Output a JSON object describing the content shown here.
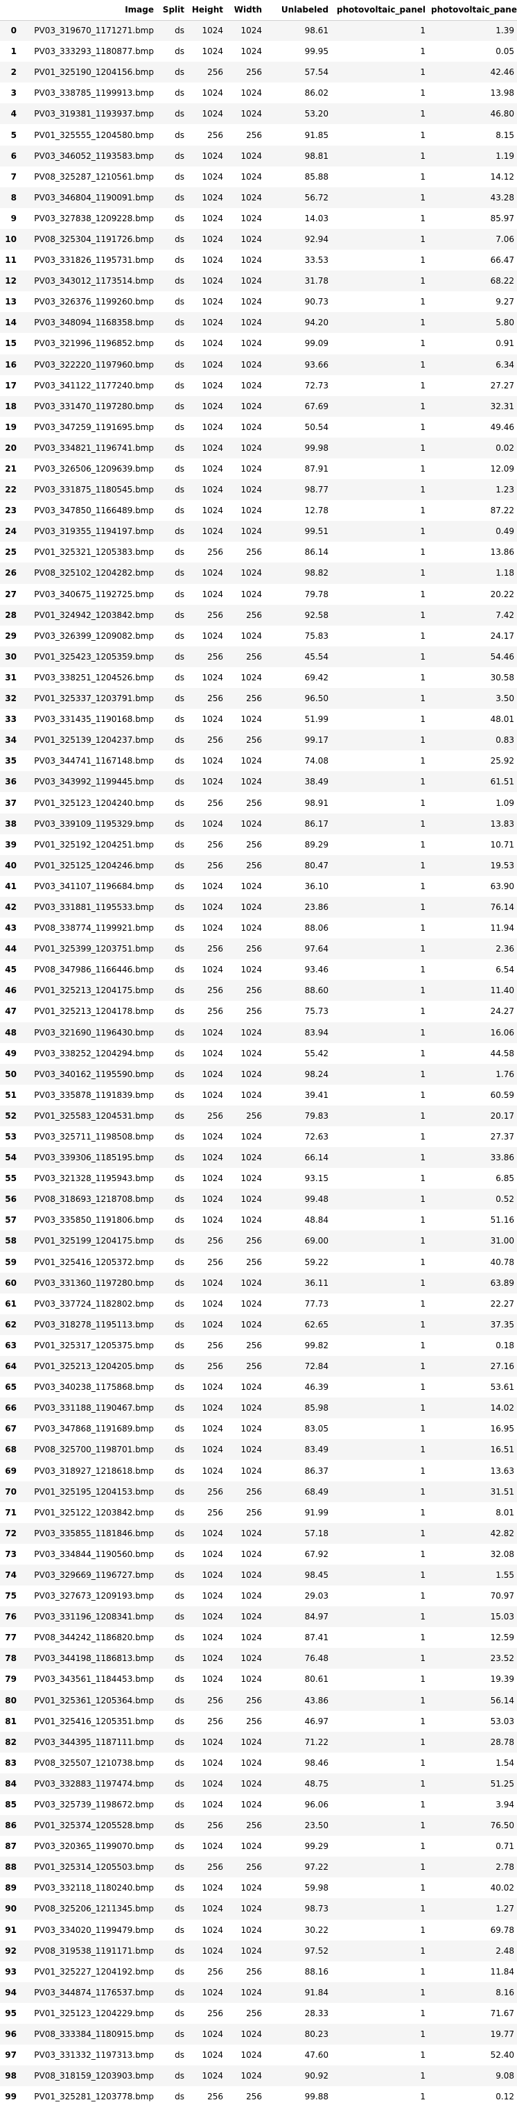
{
  "table": {
    "columns": [
      "",
      "Image",
      "Split",
      "Height",
      "Width",
      "Unlabeled",
      "photovoltaic_panel",
      "photovoltaic_panel"
    ],
    "rows": [
      [
        "0",
        "PV03_319670_1171271.bmp",
        "ds",
        "1024",
        "1024",
        "98.61",
        "1",
        "1.39"
      ],
      [
        "1",
        "PV03_333293_1180877.bmp",
        "ds",
        "1024",
        "1024",
        "99.95",
        "1",
        "0.05"
      ],
      [
        "2",
        "PV01_325190_1204156.bmp",
        "ds",
        "256",
        "256",
        "57.54",
        "1",
        "42.46"
      ],
      [
        "3",
        "PV03_338785_1199913.bmp",
        "ds",
        "1024",
        "1024",
        "86.02",
        "1",
        "13.98"
      ],
      [
        "4",
        "PV03_319381_1193937.bmp",
        "ds",
        "1024",
        "1024",
        "53.20",
        "1",
        "46.80"
      ],
      [
        "5",
        "PV01_325555_1204580.bmp",
        "ds",
        "256",
        "256",
        "91.85",
        "1",
        "8.15"
      ],
      [
        "6",
        "PV03_346052_1193583.bmp",
        "ds",
        "1024",
        "1024",
        "98.81",
        "1",
        "1.19"
      ],
      [
        "7",
        "PV08_325287_1210561.bmp",
        "ds",
        "1024",
        "1024",
        "85.88",
        "1",
        "14.12"
      ],
      [
        "8",
        "PV03_346804_1190091.bmp",
        "ds",
        "1024",
        "1024",
        "56.72",
        "1",
        "43.28"
      ],
      [
        "9",
        "PV03_327838_1209228.bmp",
        "ds",
        "1024",
        "1024",
        "14.03",
        "1",
        "85.97"
      ],
      [
        "10",
        "PV08_325304_1191726.bmp",
        "ds",
        "1024",
        "1024",
        "92.94",
        "1",
        "7.06"
      ],
      [
        "11",
        "PV03_331826_1195731.bmp",
        "ds",
        "1024",
        "1024",
        "33.53",
        "1",
        "66.47"
      ],
      [
        "12",
        "PV03_343012_1173514.bmp",
        "ds",
        "1024",
        "1024",
        "31.78",
        "1",
        "68.22"
      ],
      [
        "13",
        "PV03_326376_1199260.bmp",
        "ds",
        "1024",
        "1024",
        "90.73",
        "1",
        "9.27"
      ],
      [
        "14",
        "PV03_348094_1168358.bmp",
        "ds",
        "1024",
        "1024",
        "94.20",
        "1",
        "5.80"
      ],
      [
        "15",
        "PV03_321996_1196852.bmp",
        "ds",
        "1024",
        "1024",
        "99.09",
        "1",
        "0.91"
      ],
      [
        "16",
        "PV03_322220_1197960.bmp",
        "ds",
        "1024",
        "1024",
        "93.66",
        "1",
        "6.34"
      ],
      [
        "17",
        "PV03_341122_1177240.bmp",
        "ds",
        "1024",
        "1024",
        "72.73",
        "1",
        "27.27"
      ],
      [
        "18",
        "PV03_331470_1197280.bmp",
        "ds",
        "1024",
        "1024",
        "67.69",
        "1",
        "32.31"
      ],
      [
        "19",
        "PV03_347259_1191695.bmp",
        "ds",
        "1024",
        "1024",
        "50.54",
        "1",
        "49.46"
      ],
      [
        "20",
        "PV03_334821_1196741.bmp",
        "ds",
        "1024",
        "1024",
        "99.98",
        "1",
        "0.02"
      ],
      [
        "21",
        "PV03_326506_1209639.bmp",
        "ds",
        "1024",
        "1024",
        "87.91",
        "1",
        "12.09"
      ],
      [
        "22",
        "PV03_331875_1180545.bmp",
        "ds",
        "1024",
        "1024",
        "98.77",
        "1",
        "1.23"
      ],
      [
        "23",
        "PV03_347850_1166489.bmp",
        "ds",
        "1024",
        "1024",
        "12.78",
        "1",
        "87.22"
      ],
      [
        "24",
        "PV03_319355_1194197.bmp",
        "ds",
        "1024",
        "1024",
        "99.51",
        "1",
        "0.49"
      ],
      [
        "25",
        "PV01_325321_1205383.bmp",
        "ds",
        "256",
        "256",
        "86.14",
        "1",
        "13.86"
      ],
      [
        "26",
        "PV08_325102_1204282.bmp",
        "ds",
        "1024",
        "1024",
        "98.82",
        "1",
        "1.18"
      ],
      [
        "27",
        "PV03_340675_1192725.bmp",
        "ds",
        "1024",
        "1024",
        "79.78",
        "1",
        "20.22"
      ],
      [
        "28",
        "PV01_324942_1203842.bmp",
        "ds",
        "256",
        "256",
        "92.58",
        "1",
        "7.42"
      ],
      [
        "29",
        "PV03_326399_1209082.bmp",
        "ds",
        "1024",
        "1024",
        "75.83",
        "1",
        "24.17"
      ],
      [
        "30",
        "PV01_325423_1205359.bmp",
        "ds",
        "256",
        "256",
        "45.54",
        "1",
        "54.46"
      ],
      [
        "31",
        "PV03_338251_1204526.bmp",
        "ds",
        "1024",
        "1024",
        "69.42",
        "1",
        "30.58"
      ],
      [
        "32",
        "PV01_325337_1203791.bmp",
        "ds",
        "256",
        "256",
        "96.50",
        "1",
        "3.50"
      ],
      [
        "33",
        "PV03_331435_1190168.bmp",
        "ds",
        "1024",
        "1024",
        "51.99",
        "1",
        "48.01"
      ],
      [
        "34",
        "PV01_325139_1204237.bmp",
        "ds",
        "256",
        "256",
        "99.17",
        "1",
        "0.83"
      ],
      [
        "35",
        "PV03_344741_1167148.bmp",
        "ds",
        "1024",
        "1024",
        "74.08",
        "1",
        "25.92"
      ],
      [
        "36",
        "PV03_343992_1199445.bmp",
        "ds",
        "1024",
        "1024",
        "38.49",
        "1",
        "61.51"
      ],
      [
        "37",
        "PV01_325123_1204240.bmp",
        "ds",
        "256",
        "256",
        "98.91",
        "1",
        "1.09"
      ],
      [
        "38",
        "PV03_339109_1195329.bmp",
        "ds",
        "1024",
        "1024",
        "86.17",
        "1",
        "13.83"
      ],
      [
        "39",
        "PV01_325192_1204251.bmp",
        "ds",
        "256",
        "256",
        "89.29",
        "1",
        "10.71"
      ],
      [
        "40",
        "PV01_325125_1204246.bmp",
        "ds",
        "256",
        "256",
        "80.47",
        "1",
        "19.53"
      ],
      [
        "41",
        "PV03_341107_1196684.bmp",
        "ds",
        "1024",
        "1024",
        "36.10",
        "1",
        "63.90"
      ],
      [
        "42",
        "PV03_331881_1195533.bmp",
        "ds",
        "1024",
        "1024",
        "23.86",
        "1",
        "76.14"
      ],
      [
        "43",
        "PV08_338774_1199921.bmp",
        "ds",
        "1024",
        "1024",
        "88.06",
        "1",
        "11.94"
      ],
      [
        "44",
        "PV01_325399_1203751.bmp",
        "ds",
        "256",
        "256",
        "97.64",
        "1",
        "2.36"
      ],
      [
        "45",
        "PV08_347986_1166446.bmp",
        "ds",
        "1024",
        "1024",
        "93.46",
        "1",
        "6.54"
      ],
      [
        "46",
        "PV01_325213_1204175.bmp",
        "ds",
        "256",
        "256",
        "88.60",
        "1",
        "11.40"
      ],
      [
        "47",
        "PV01_325213_1204178.bmp",
        "ds",
        "256",
        "256",
        "75.73",
        "1",
        "24.27"
      ],
      [
        "48",
        "PV03_321690_1196430.bmp",
        "ds",
        "1024",
        "1024",
        "83.94",
        "1",
        "16.06"
      ],
      [
        "49",
        "PV03_338252_1204294.bmp",
        "ds",
        "1024",
        "1024",
        "55.42",
        "1",
        "44.58"
      ],
      [
        "50",
        "PV03_340162_1195590.bmp",
        "ds",
        "1024",
        "1024",
        "98.24",
        "1",
        "1.76"
      ],
      [
        "51",
        "PV03_335878_1191839.bmp",
        "ds",
        "1024",
        "1024",
        "39.41",
        "1",
        "60.59"
      ],
      [
        "52",
        "PV01_325583_1204531.bmp",
        "ds",
        "256",
        "256",
        "79.83",
        "1",
        "20.17"
      ],
      [
        "53",
        "PV03_325711_1198508.bmp",
        "ds",
        "1024",
        "1024",
        "72.63",
        "1",
        "27.37"
      ],
      [
        "54",
        "PV03_339306_1185195.bmp",
        "ds",
        "1024",
        "1024",
        "66.14",
        "1",
        "33.86"
      ],
      [
        "55",
        "PV03_321328_1195943.bmp",
        "ds",
        "1024",
        "1024",
        "93.15",
        "1",
        "6.85"
      ],
      [
        "56",
        "PV08_318693_1218708.bmp",
        "ds",
        "1024",
        "1024",
        "99.48",
        "1",
        "0.52"
      ],
      [
        "57",
        "PV03_335850_1191806.bmp",
        "ds",
        "1024",
        "1024",
        "48.84",
        "1",
        "51.16"
      ],
      [
        "58",
        "PV01_325199_1204175.bmp",
        "ds",
        "256",
        "256",
        "69.00",
        "1",
        "31.00"
      ],
      [
        "59",
        "PV01_325416_1205372.bmp",
        "ds",
        "256",
        "256",
        "59.22",
        "1",
        "40.78"
      ],
      [
        "60",
        "PV03_331360_1197280.bmp",
        "ds",
        "1024",
        "1024",
        "36.11",
        "1",
        "63.89"
      ],
      [
        "61",
        "PV03_337724_1182802.bmp",
        "ds",
        "1024",
        "1024",
        "77.73",
        "1",
        "22.27"
      ],
      [
        "62",
        "PV03_318278_1195113.bmp",
        "ds",
        "1024",
        "1024",
        "62.65",
        "1",
        "37.35"
      ],
      [
        "63",
        "PV01_325317_1205375.bmp",
        "ds",
        "256",
        "256",
        "99.82",
        "1",
        "0.18"
      ],
      [
        "64",
        "PV01_325213_1204205.bmp",
        "ds",
        "256",
        "256",
        "72.84",
        "1",
        "27.16"
      ],
      [
        "65",
        "PV03_340238_1175868.bmp",
        "ds",
        "1024",
        "1024",
        "46.39",
        "1",
        "53.61"
      ],
      [
        "66",
        "PV03_331188_1190467.bmp",
        "ds",
        "1024",
        "1024",
        "85.98",
        "1",
        "14.02"
      ],
      [
        "67",
        "PV03_347868_1191689.bmp",
        "ds",
        "1024",
        "1024",
        "83.05",
        "1",
        "16.95"
      ],
      [
        "68",
        "PV08_325700_1198701.bmp",
        "ds",
        "1024",
        "1024",
        "83.49",
        "1",
        "16.51"
      ],
      [
        "69",
        "PV03_318927_1218618.bmp",
        "ds",
        "1024",
        "1024",
        "86.37",
        "1",
        "13.63"
      ],
      [
        "70",
        "PV01_325195_1204153.bmp",
        "ds",
        "256",
        "256",
        "68.49",
        "1",
        "31.51"
      ],
      [
        "71",
        "PV01_325122_1203842.bmp",
        "ds",
        "256",
        "256",
        "91.99",
        "1",
        "8.01"
      ],
      [
        "72",
        "PV03_335855_1181846.bmp",
        "ds",
        "1024",
        "1024",
        "57.18",
        "1",
        "42.82"
      ],
      [
        "73",
        "PV03_334844_1190560.bmp",
        "ds",
        "1024",
        "1024",
        "67.92",
        "1",
        "32.08"
      ],
      [
        "74",
        "PV03_329669_1196727.bmp",
        "ds",
        "1024",
        "1024",
        "98.45",
        "1",
        "1.55"
      ],
      [
        "75",
        "PV03_327673_1209193.bmp",
        "ds",
        "1024",
        "1024",
        "29.03",
        "1",
        "70.97"
      ],
      [
        "76",
        "PV03_331196_1208341.bmp",
        "ds",
        "1024",
        "1024",
        "84.97",
        "1",
        "15.03"
      ],
      [
        "77",
        "PV08_344242_1186820.bmp",
        "ds",
        "1024",
        "1024",
        "87.41",
        "1",
        "12.59"
      ],
      [
        "78",
        "PV03_344198_1186813.bmp",
        "ds",
        "1024",
        "1024",
        "76.48",
        "1",
        "23.52"
      ],
      [
        "79",
        "PV03_343561_1184453.bmp",
        "ds",
        "1024",
        "1024",
        "80.61",
        "1",
        "19.39"
      ],
      [
        "80",
        "PV01_325361_1205364.bmp",
        "ds",
        "256",
        "256",
        "43.86",
        "1",
        "56.14"
      ],
      [
        "81",
        "PV01_325416_1205351.bmp",
        "ds",
        "256",
        "256",
        "46.97",
        "1",
        "53.03"
      ],
      [
        "82",
        "PV03_344395_1187111.bmp",
        "ds",
        "1024",
        "1024",
        "71.22",
        "1",
        "28.78"
      ],
      [
        "83",
        "PV08_325507_1210738.bmp",
        "ds",
        "1024",
        "1024",
        "98.46",
        "1",
        "1.54"
      ],
      [
        "84",
        "PV03_332883_1197474.bmp",
        "ds",
        "1024",
        "1024",
        "48.75",
        "1",
        "51.25"
      ],
      [
        "85",
        "PV03_325739_1198672.bmp",
        "ds",
        "1024",
        "1024",
        "96.06",
        "1",
        "3.94"
      ],
      [
        "86",
        "PV01_325374_1205528.bmp",
        "ds",
        "256",
        "256",
        "23.50",
        "1",
        "76.50"
      ],
      [
        "87",
        "PV03_320365_1199070.bmp",
        "ds",
        "1024",
        "1024",
        "99.29",
        "1",
        "0.71"
      ],
      [
        "88",
        "PV01_325314_1205503.bmp",
        "ds",
        "256",
        "256",
        "97.22",
        "1",
        "2.78"
      ],
      [
        "89",
        "PV03_332118_1180240.bmp",
        "ds",
        "1024",
        "1024",
        "59.98",
        "1",
        "40.02"
      ],
      [
        "90",
        "PV08_325206_1211345.bmp",
        "ds",
        "1024",
        "1024",
        "98.73",
        "1",
        "1.27"
      ],
      [
        "91",
        "PV03_334020_1199479.bmp",
        "ds",
        "1024",
        "1024",
        "30.22",
        "1",
        "69.78"
      ],
      [
        "92",
        "PV08_319538_1191171.bmp",
        "ds",
        "1024",
        "1024",
        "97.52",
        "1",
        "2.48"
      ],
      [
        "93",
        "PV01_325227_1204192.bmp",
        "ds",
        "256",
        "256",
        "88.16",
        "1",
        "11.84"
      ],
      [
        "94",
        "PV03_344874_1176537.bmp",
        "ds",
        "1024",
        "1024",
        "91.84",
        "1",
        "8.16"
      ],
      [
        "95",
        "PV01_325123_1204229.bmp",
        "ds",
        "256",
        "256",
        "28.33",
        "1",
        "71.67"
      ],
      [
        "96",
        "PV08_333384_1180915.bmp",
        "ds",
        "1024",
        "1024",
        "80.23",
        "1",
        "19.77"
      ],
      [
        "97",
        "PV03_331332_1197313.bmp",
        "ds",
        "1024",
        "1024",
        "47.60",
        "1",
        "52.40"
      ],
      [
        "98",
        "PV08_318159_1203903.bmp",
        "ds",
        "1024",
        "1024",
        "90.92",
        "1",
        "9.08"
      ],
      [
        "99",
        "PV01_325281_1203778.bmp",
        "ds",
        "256",
        "256",
        "99.88",
        "1",
        "0.12"
      ]
    ]
  }
}
